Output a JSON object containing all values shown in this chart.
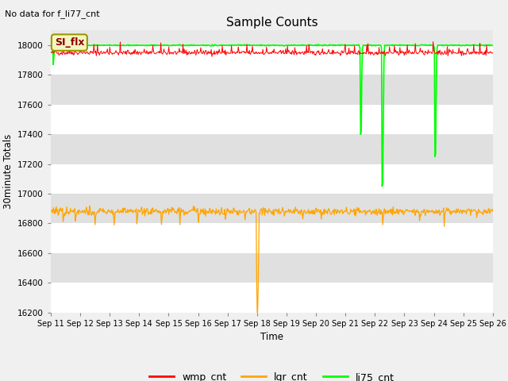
{
  "title": "Sample Counts",
  "top_left_text": "No data for f_li77_cnt",
  "xlabel": "Time",
  "ylabel": "30minute Totals",
  "ylim": [
    16200,
    18100
  ],
  "xlim": [
    0,
    360
  ],
  "x_tick_labels": [
    "Sep 11",
    "Sep 12",
    "Sep 13",
    "Sep 14",
    "Sep 15",
    "Sep 16",
    "Sep 17",
    "Sep 18",
    "Sep 19",
    "Sep 20",
    "Sep 21",
    "Sep 22",
    "Sep 23",
    "Sep 24",
    "Sep 25",
    "Sep 26"
  ],
  "x_tick_positions": [
    0,
    24,
    48,
    72,
    96,
    120,
    144,
    168,
    192,
    216,
    240,
    264,
    288,
    312,
    336,
    360
  ],
  "annotation_box_text": "SI_flx",
  "colors": {
    "wmp": "#ff0000",
    "lgr": "#ffa500",
    "li75": "#00ff00",
    "background_dark": "#e0e0e0",
    "background_light": "#ebebeb",
    "grid": "#ffffff"
  },
  "legend_labels": [
    "wmp_cnt",
    "lgr_cnt",
    "li75_cnt"
  ],
  "legend_colors": [
    "#ff0000",
    "#ffa500",
    "#00ff00"
  ]
}
